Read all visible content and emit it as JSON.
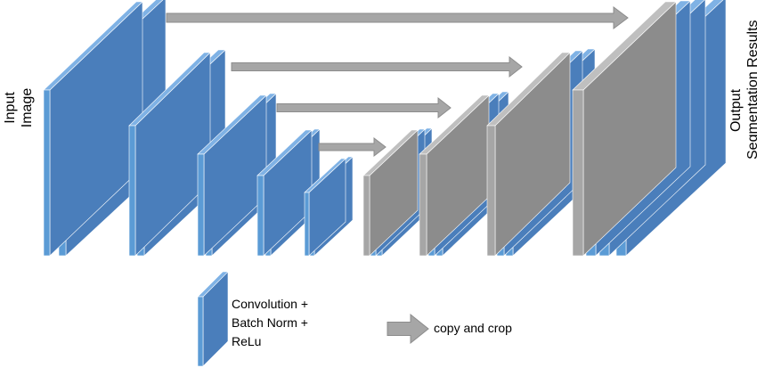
{
  "labels": {
    "input": [
      "Input",
      "Image"
    ],
    "output": [
      "Output",
      "Segmentation Results"
    ]
  },
  "legend": {
    "conv_block": [
      "Convolution +",
      "Batch Norm +",
      "ReLu"
    ],
    "copy_arrow": "copy and crop"
  },
  "colors": {
    "conv_face": "#4a7ebb",
    "conv_front": "#5b9bd5",
    "conv_top": "#7fb2e5",
    "copy_face": "#8c8c8c",
    "copy_front": "#a6a6a6",
    "copy_top": "#bfbfbf",
    "arrow": "#a6a6a6",
    "arrow_edge": "#8c8c8c"
  }
}
